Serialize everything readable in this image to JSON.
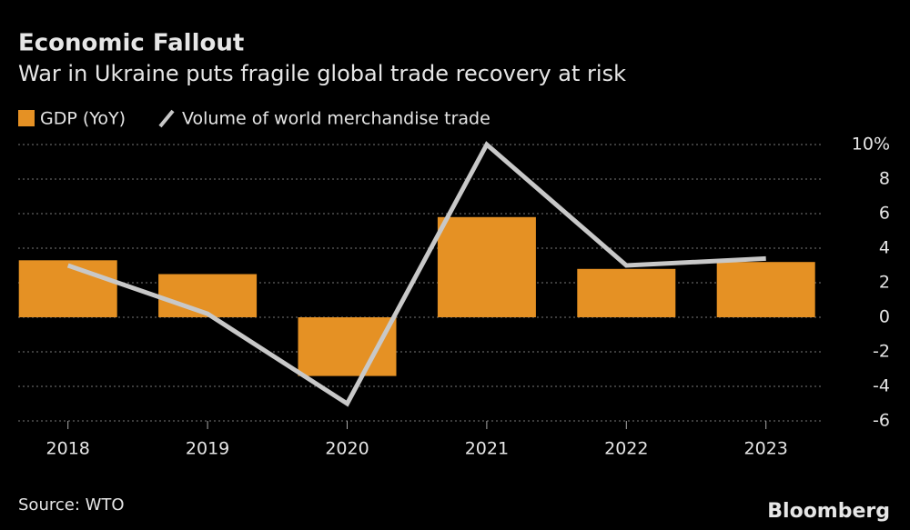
{
  "chart_data": {
    "type": "bar_line",
    "title": "Economic Fallout",
    "subtitle": "War in Ukraine puts fragile global trade recovery at risk",
    "categories": [
      "2018",
      "2019",
      "2020",
      "2021",
      "2022",
      "2023"
    ],
    "series": [
      {
        "name": "GDP (YoY)",
        "type": "bar",
        "color": "#e59124",
        "values": [
          3.3,
          2.5,
          -3.4,
          5.8,
          2.8,
          3.2
        ]
      },
      {
        "name": "Volume of world merchandise trade",
        "type": "line",
        "color": "#c8c8c8",
        "values": [
          3.0,
          0.2,
          -5.0,
          10.0,
          3.0,
          3.4
        ]
      }
    ],
    "ylim": [
      -6,
      10
    ],
    "yticks": [
      {
        "value": 10,
        "label": "10%"
      },
      8,
      6,
      4,
      2,
      0,
      -2,
      -4,
      -6
    ],
    "grid": true,
    "source": "Source: WTO",
    "credit": "Bloomberg"
  }
}
